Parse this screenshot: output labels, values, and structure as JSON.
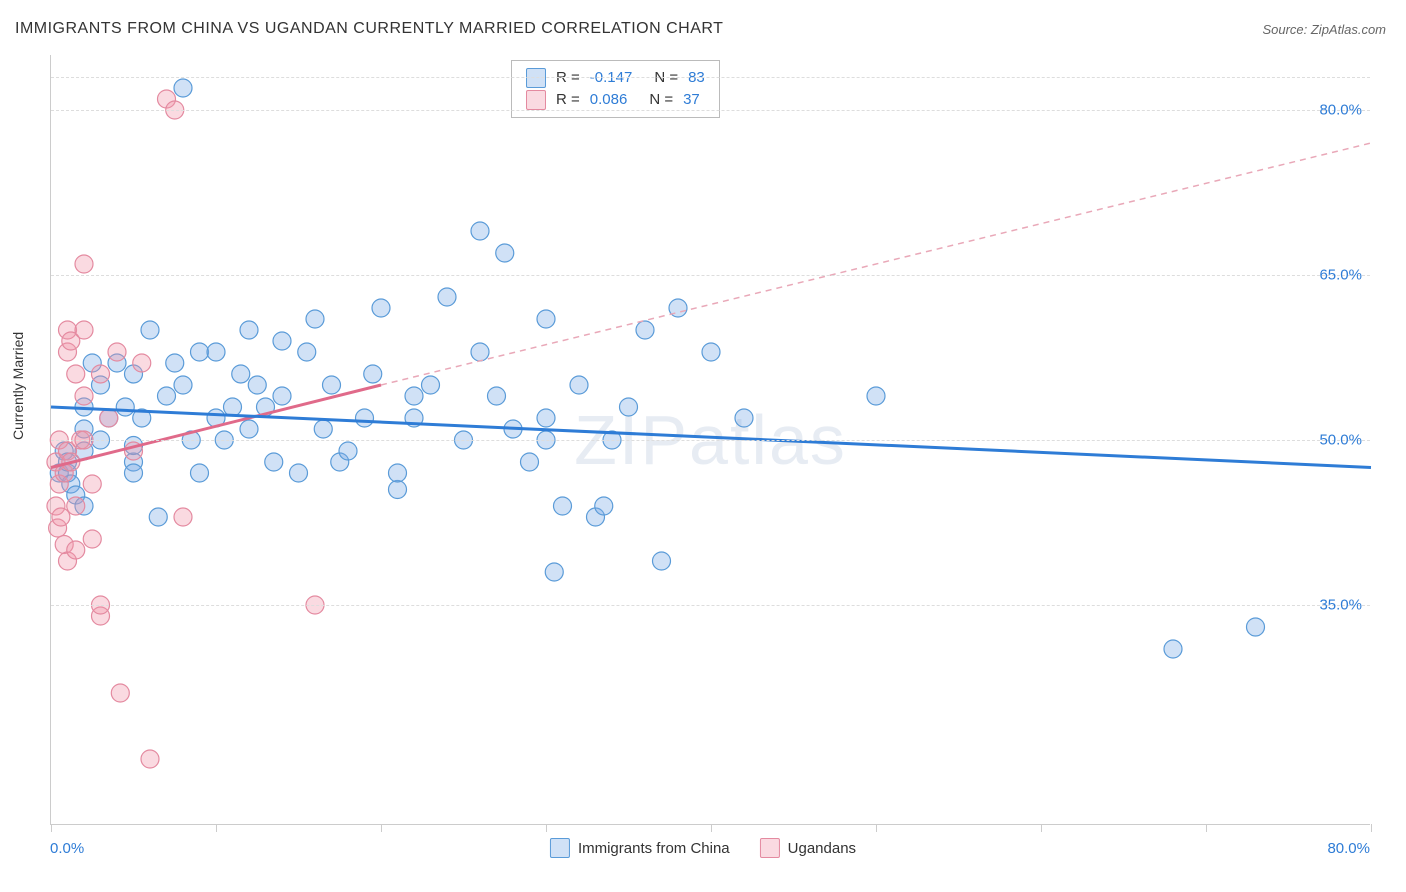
{
  "title": "IMMIGRANTS FROM CHINA VS UGANDAN CURRENTLY MARRIED CORRELATION CHART",
  "source": "Source: ZipAtlas.com",
  "watermark": "ZIPatlas",
  "y_axis_title": "Currently Married",
  "chart": {
    "type": "scatter",
    "background_color": "#ffffff",
    "grid_color": "#dddddd",
    "axis_color": "#cccccc",
    "xlim": [
      0,
      80
    ],
    "ylim": [
      15,
      85
    ],
    "x_tick_positions": [
      0,
      10,
      20,
      30,
      40,
      50,
      60,
      70,
      80
    ],
    "x_label_min": "0.0%",
    "x_label_max": "80.0%",
    "x_label_color": "#2e7cd6",
    "y_ticks": [
      {
        "v": 35,
        "label": "35.0%"
      },
      {
        "v": 50,
        "label": "50.0%"
      },
      {
        "v": 65,
        "label": "65.0%"
      },
      {
        "v": 80,
        "label": "80.0%"
      }
    ],
    "y_label_color": "#2e7cd6",
    "marker_radius": 9,
    "marker_stroke_width": 1.2,
    "series": [
      {
        "key": "china",
        "name": "Immigrants from China",
        "fill": "rgba(120,170,230,0.35)",
        "stroke": "#5a9bd8",
        "trend": {
          "x1": 0,
          "y1": 53,
          "x2": 80,
          "y2": 47.5,
          "stroke": "#2e7cd6",
          "width": 3,
          "dash": "none"
        },
        "R": "-0.147",
        "N": "83",
        "points": [
          [
            0.5,
            47
          ],
          [
            0.8,
            49
          ],
          [
            1,
            47
          ],
          [
            1,
            48
          ],
          [
            1.2,
            46
          ],
          [
            1.5,
            45
          ],
          [
            2,
            53
          ],
          [
            2,
            51
          ],
          [
            2,
            49
          ],
          [
            2,
            44
          ],
          [
            2.5,
            57
          ],
          [
            3,
            55
          ],
          [
            3,
            50
          ],
          [
            3.5,
            52
          ],
          [
            4,
            57
          ],
          [
            4.5,
            53
          ],
          [
            5,
            48
          ],
          [
            5,
            49.5
          ],
          [
            5,
            56
          ],
          [
            5,
            47
          ],
          [
            5.5,
            52
          ],
          [
            6,
            60
          ],
          [
            6.5,
            43
          ],
          [
            7,
            54
          ],
          [
            7.5,
            57
          ],
          [
            8,
            82
          ],
          [
            8,
            55
          ],
          [
            8.5,
            50
          ],
          [
            9,
            47
          ],
          [
            9,
            58
          ],
          [
            10,
            52
          ],
          [
            10,
            58
          ],
          [
            10.5,
            50
          ],
          [
            11,
            53
          ],
          [
            11.5,
            56
          ],
          [
            12,
            60
          ],
          [
            12,
            51
          ],
          [
            12.5,
            55
          ],
          [
            13,
            53
          ],
          [
            13.5,
            48
          ],
          [
            14,
            59
          ],
          [
            14,
            54
          ],
          [
            15,
            47
          ],
          [
            15.5,
            58
          ],
          [
            16,
            61
          ],
          [
            16.5,
            51
          ],
          [
            17,
            55
          ],
          [
            17.5,
            48
          ],
          [
            18,
            49
          ],
          [
            19,
            52
          ],
          [
            19.5,
            56
          ],
          [
            20,
            62
          ],
          [
            21,
            45.5
          ],
          [
            21,
            47
          ],
          [
            22,
            52
          ],
          [
            22,
            54
          ],
          [
            23,
            55
          ],
          [
            24,
            63
          ],
          [
            25,
            50
          ],
          [
            26,
            58
          ],
          [
            26,
            69
          ],
          [
            27,
            54
          ],
          [
            27.5,
            67
          ],
          [
            28,
            51
          ],
          [
            29,
            48
          ],
          [
            30,
            61
          ],
          [
            30,
            52
          ],
          [
            30,
            50
          ],
          [
            30.5,
            38
          ],
          [
            31,
            44
          ],
          [
            32,
            55
          ],
          [
            33,
            43
          ],
          [
            33.5,
            44
          ],
          [
            34,
            50
          ],
          [
            35,
            53
          ],
          [
            36,
            60
          ],
          [
            37,
            39
          ],
          [
            38,
            62
          ],
          [
            40,
            58
          ],
          [
            42,
            52
          ],
          [
            50,
            54
          ],
          [
            68,
            31
          ],
          [
            73,
            33
          ]
        ]
      },
      {
        "key": "uganda",
        "name": "Ugandans",
        "fill": "rgba(240,150,170,0.35)",
        "stroke": "#e48aa0",
        "trend_solid": {
          "x1": 0,
          "y1": 47.5,
          "x2": 20,
          "y2": 55,
          "stroke": "#e06a8a",
          "width": 3
        },
        "trend_dash": {
          "x1": 20,
          "y1": 55,
          "x2": 80,
          "y2": 77,
          "stroke": "#e9a8b8",
          "width": 1.5,
          "dash": "6,5"
        },
        "R": "0.086",
        "N": "37",
        "points": [
          [
            0.3,
            48
          ],
          [
            0.3,
            44
          ],
          [
            0.4,
            42
          ],
          [
            0.5,
            50
          ],
          [
            0.5,
            46
          ],
          [
            0.6,
            43
          ],
          [
            0.8,
            47
          ],
          [
            0.8,
            40.5
          ],
          [
            1,
            60
          ],
          [
            1,
            49
          ],
          [
            1,
            58
          ],
          [
            1,
            39
          ],
          [
            1.2,
            48
          ],
          [
            1.2,
            59
          ],
          [
            1.5,
            56
          ],
          [
            1.5,
            44
          ],
          [
            1.5,
            40
          ],
          [
            1.8,
            50
          ],
          [
            2,
            50
          ],
          [
            2,
            54
          ],
          [
            2,
            60
          ],
          [
            2,
            66
          ],
          [
            2.5,
            46
          ],
          [
            2.5,
            41
          ],
          [
            3,
            56
          ],
          [
            3,
            34
          ],
          [
            3,
            35
          ],
          [
            3.5,
            52
          ],
          [
            4,
            58
          ],
          [
            4.2,
            27
          ],
          [
            5,
            49
          ],
          [
            5.5,
            57
          ],
          [
            6,
            21
          ],
          [
            7,
            81
          ],
          [
            7.5,
            80
          ],
          [
            8,
            43
          ],
          [
            16,
            35
          ]
        ]
      }
    ],
    "legend_stats": {
      "label_color": "#333333",
      "value_color": "#2e7cd6",
      "border_color": "#bbbbbb"
    }
  }
}
